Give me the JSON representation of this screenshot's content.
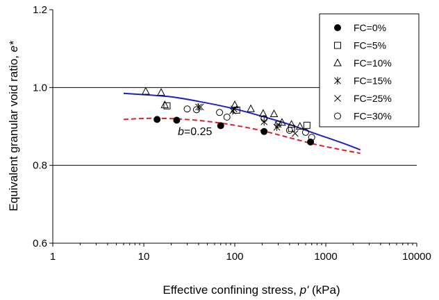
{
  "chart_data": {
    "type": "scatter",
    "title": "",
    "xlabel": "Effective confining stress, ",
    "xlabel_var": "p'",
    "xlabel_unit": " (kPa)",
    "ylabel": "Equivalent granular void ratio, ",
    "ylabel_var": "e*",
    "x_scale": "log",
    "xlim": [
      1,
      10000
    ],
    "ylim": [
      0.6,
      1.2
    ],
    "x_ticks": [
      1,
      10,
      100,
      1000,
      10000
    ],
    "x_tick_labels": [
      "1",
      "10",
      "100",
      "1000",
      "10000"
    ],
    "y_ticks": [
      0.6,
      0.8,
      1.0,
      1.2
    ],
    "y_tick_labels": [
      "0.6",
      "0.8",
      "1.0",
      "1.2"
    ],
    "gridlines_y": [
      0.8,
      1.0
    ],
    "legend_position": "top-right",
    "annotation": {
      "var": "b",
      "text": "=0.25"
    },
    "series": [
      {
        "name": "FC=0%",
        "marker": "filled-circle",
        "points": [
          [
            14,
            0.918
          ],
          [
            23,
            0.916
          ],
          [
            70,
            0.902
          ],
          [
            210,
            0.887
          ],
          [
            680,
            0.86
          ]
        ]
      },
      {
        "name": "FC=5%",
        "marker": "open-square",
        "points": [
          [
            18,
            0.953
          ],
          [
            105,
            0.942
          ],
          [
            420,
            0.895
          ],
          [
            620,
            0.903
          ]
        ]
      },
      {
        "name": "FC=10%",
        "marker": "open-triangle",
        "points": [
          [
            10.5,
            0.99
          ],
          [
            15.5,
            0.987
          ],
          [
            17,
            0.955
          ],
          [
            100,
            0.955
          ],
          [
            150,
            0.945
          ],
          [
            205,
            0.933
          ],
          [
            270,
            0.932
          ],
          [
            330,
            0.91
          ],
          [
            420,
            0.905
          ],
          [
            520,
            0.9
          ]
        ]
      },
      {
        "name": "FC=15%",
        "marker": "asterisk",
        "points": [
          [
            40,
            0.95
          ],
          [
            95,
            0.94
          ],
          [
            210,
            0.912
          ],
          [
            290,
            0.898
          ]
        ]
      },
      {
        "name": "FC=25%",
        "marker": "x",
        "points": [
          [
            42,
            0.95
          ],
          [
            98,
            0.945
          ],
          [
            300,
            0.905
          ],
          [
            460,
            0.882
          ]
        ]
      },
      {
        "name": "FC=30%",
        "marker": "open-circle",
        "points": [
          [
            30,
            0.945
          ],
          [
            38,
            0.943
          ],
          [
            68,
            0.936
          ],
          [
            82,
            0.924
          ],
          [
            210,
            0.92
          ],
          [
            300,
            0.906
          ],
          [
            400,
            0.89
          ],
          [
            600,
            0.885
          ],
          [
            700,
            0.872
          ]
        ]
      }
    ],
    "fit_lines": [
      {
        "style": "solid",
        "color": "#1f1fcc",
        "points": [
          [
            6,
            0.985
          ],
          [
            20,
            0.976
          ],
          [
            50,
            0.96
          ],
          [
            100,
            0.945
          ],
          [
            200,
            0.926
          ],
          [
            400,
            0.905
          ],
          [
            800,
            0.88
          ],
          [
            1500,
            0.858
          ],
          [
            2400,
            0.84
          ]
        ]
      },
      {
        "style": "dashed",
        "color": "#e02020",
        "points": [
          [
            6,
            0.918
          ],
          [
            12,
            0.921
          ],
          [
            25,
            0.919
          ],
          [
            50,
            0.913
          ],
          [
            100,
            0.903
          ],
          [
            200,
            0.889
          ],
          [
            400,
            0.871
          ],
          [
            800,
            0.853
          ],
          [
            1500,
            0.84
          ],
          [
            2400,
            0.831
          ]
        ]
      }
    ]
  }
}
